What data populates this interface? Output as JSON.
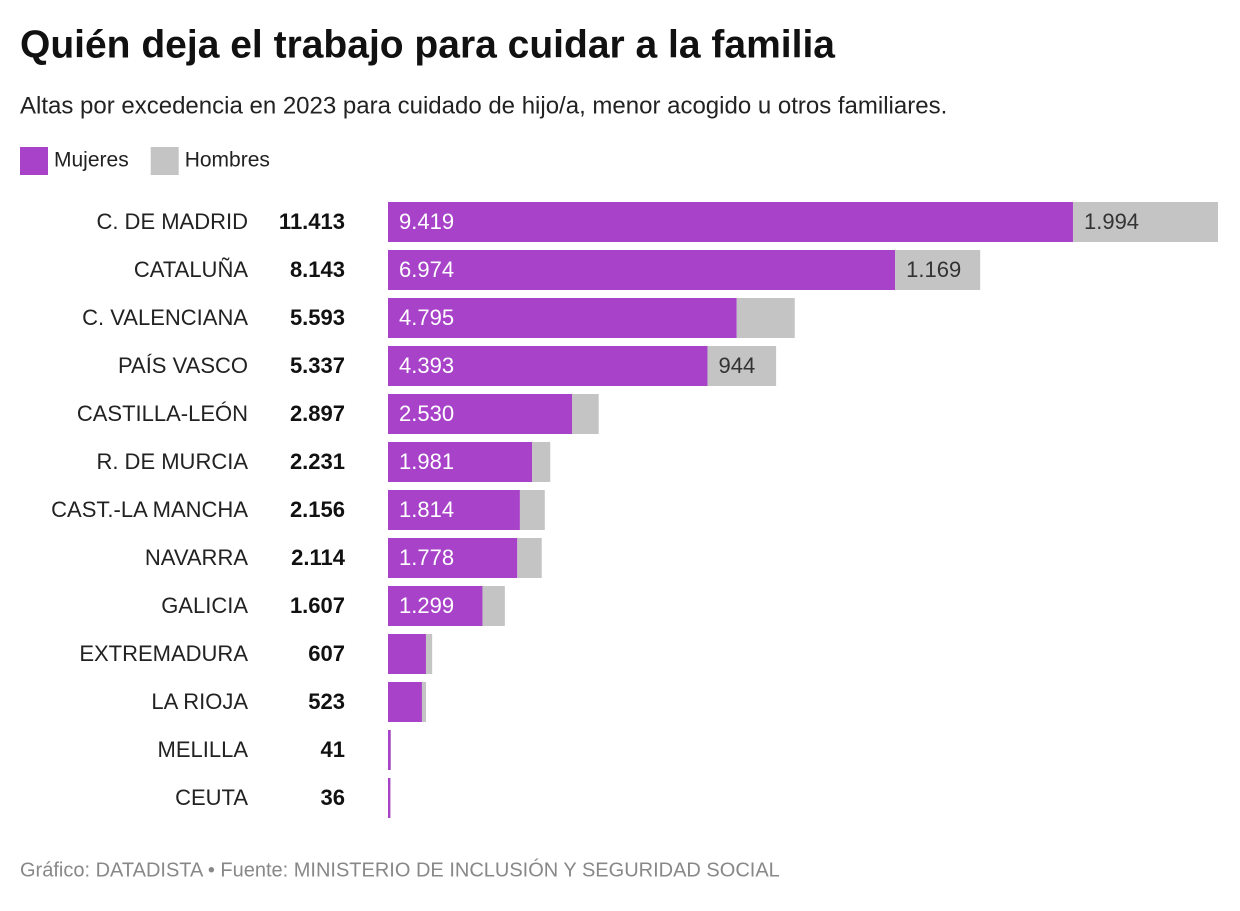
{
  "chart_data": {
    "type": "stacked-bar-horizontal",
    "title": "Quién deja el trabajo para cuidar a la familia",
    "subtitle": "Altas por excedencia en 2023 para cuidado de hijo/a, menor acogido u otros familiares.",
    "source": "Gráfico: DATADISTA • Fuente: MINISTERIO DE INCLUSIÓN Y SEGURIDAD SOCIAL",
    "categories": [
      "C. DE MADRID",
      "CATALUÑA",
      "C. VALENCIANA",
      "PAÍS VASCO",
      "CASTILLA-LEÓN",
      "R. DE MURCIA",
      "CAST.-LA MANCHA",
      "NAVARRA",
      "GALICIA",
      "EXTREMADURA",
      "LA RIOJA",
      "MELILLA",
      "CEUTA"
    ],
    "totals": {
      "values": [
        11413,
        8143,
        5593,
        5337,
        2897,
        2231,
        2156,
        2114,
        1607,
        607,
        523,
        41,
        36
      ],
      "value_labels": [
        "11.413",
        "8.143",
        "5.593",
        "5.337",
        "2.897",
        "2.231",
        "2.156",
        "2.114",
        "1.607",
        "607",
        "523",
        "41",
        "36"
      ]
    },
    "series": [
      {
        "name": "Mujeres",
        "color": "#a843c9",
        "label_color": "#ffffff",
        "values": [
          9419,
          6974,
          4795,
          4393,
          2530,
          1981,
          1814,
          1778,
          1299,
          522,
          467,
          38,
          33
        ],
        "value_labels": [
          "9.419",
          "6.974",
          "4.795",
          "4.393",
          "2.530",
          "1.981",
          "1.814",
          "1.778",
          "1.299",
          null,
          null,
          null,
          null
        ]
      },
      {
        "name": "Hombres",
        "color": "#c4c4c4",
        "label_color": "#333333",
        "values": [
          1994,
          1169,
          798,
          944,
          367,
          250,
          342,
          336,
          308,
          85,
          56,
          3,
          3
        ],
        "value_labels": [
          "1.994",
          "1.169",
          null,
          "944",
          null,
          null,
          null,
          null,
          null,
          null,
          null,
          null,
          null
        ]
      }
    ]
  }
}
